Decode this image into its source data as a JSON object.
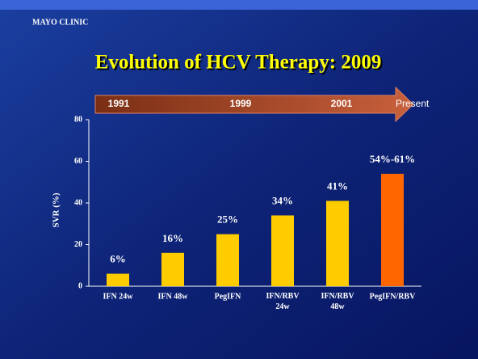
{
  "logo": "MAYO CLINIC",
  "chart_data": {
    "type": "bar",
    "title": "Evolution of HCV Therapy: 2009",
    "timeline": [
      "1991",
      "1999",
      "2001",
      "Present"
    ],
    "ylabel": "SVR (%)",
    "categories": [
      "IFN 24w",
      "IFN 48w",
      "PegIFN",
      "IFN/RBV 24w",
      "IFN/RBV 48w",
      "PegIFN/RBV"
    ],
    "values": [
      6,
      16,
      25,
      34,
      41,
      54
    ],
    "value_labels": [
      "6%",
      "16%",
      "25%",
      "34%",
      "41%",
      "54%-61%"
    ],
    "colors": [
      "#ffcc00",
      "#ffcc00",
      "#ffcc00",
      "#ffcc00",
      "#ffcc00",
      "#ff6600"
    ],
    "ylim": [
      0,
      80
    ],
    "yticks": [
      0,
      20,
      40,
      60,
      80
    ]
  }
}
